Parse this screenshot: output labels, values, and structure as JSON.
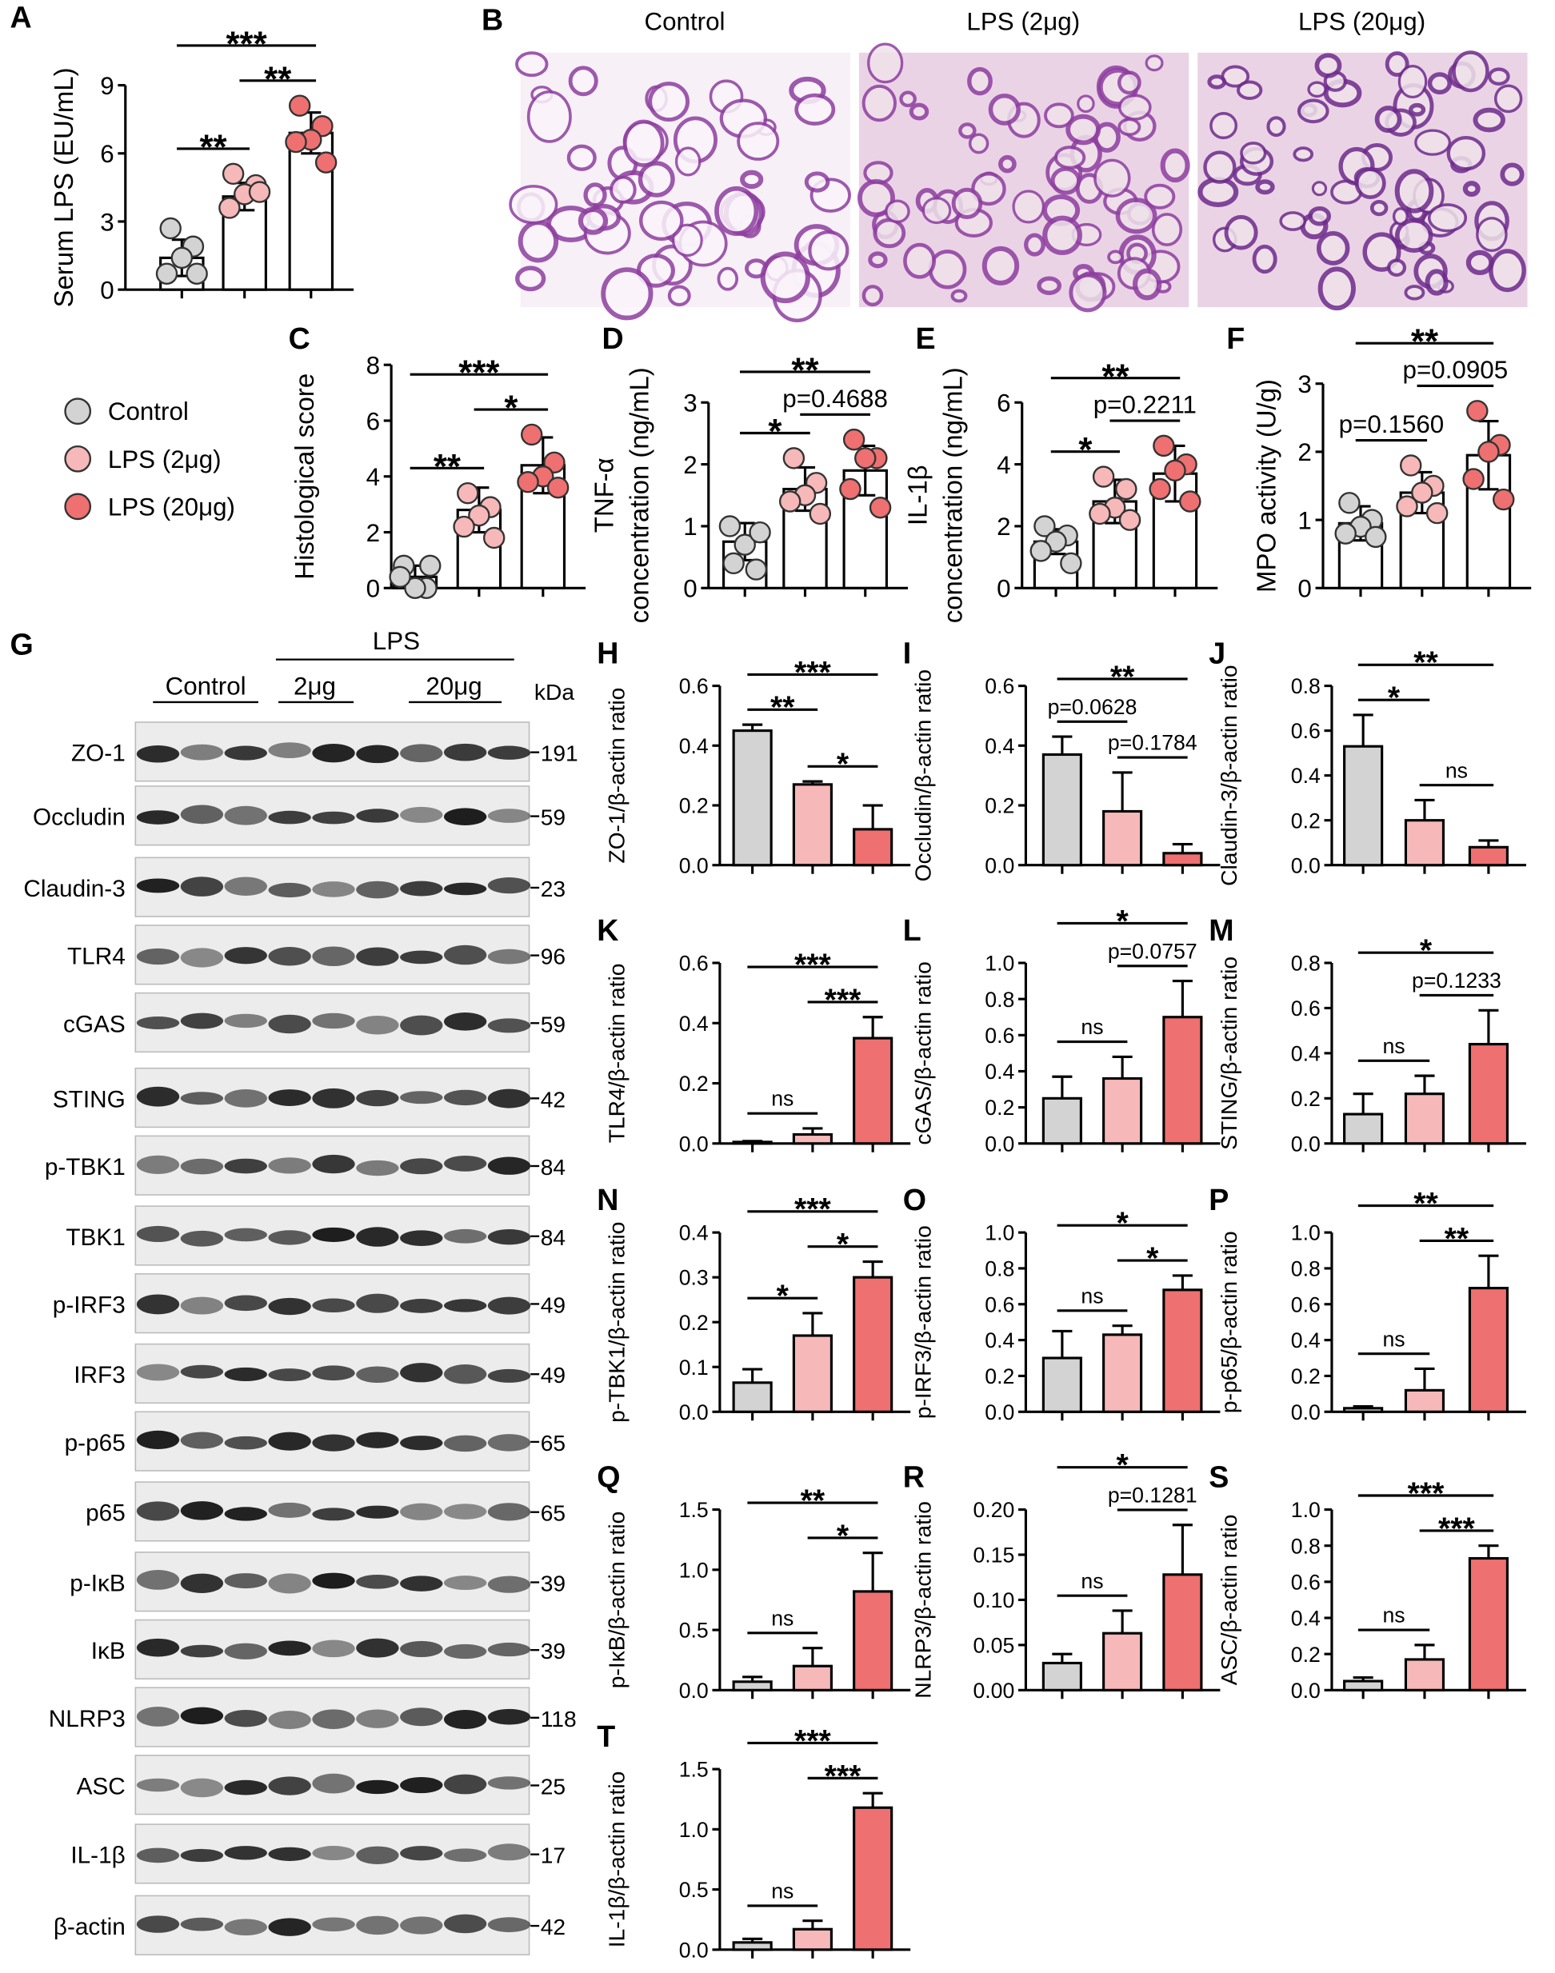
{
  "figure": {
    "groups": [
      {
        "name": "Control",
        "color": "#d3d3d3"
      },
      {
        "name": "LPS (2μg)",
        "color": "#f6b8b8"
      },
      {
        "name": "LPS (20μg)",
        "color": "#ee7070"
      }
    ],
    "histology": {
      "panel": "B",
      "titles": [
        "Control",
        "LPS (2μg)",
        "LPS (20μg)"
      ]
    },
    "blot": {
      "panel": "G",
      "control": "Control",
      "lps": "LPS",
      "doses": [
        "2μg",
        "20μg"
      ],
      "unit": "kDa",
      "rows": [
        {
          "name": "ZO-1",
          "kda": 191
        },
        {
          "name": "Occludin",
          "kda": 59
        },
        {
          "name": "Claudin-3",
          "kda": 23
        },
        {
          "name": "TLR4",
          "kda": 96
        },
        {
          "name": "cGAS",
          "kda": 59
        },
        {
          "name": "STING",
          "kda": 42
        },
        {
          "name": "p-TBK1",
          "kda": 84
        },
        {
          "name": "TBK1",
          "kda": 84
        },
        {
          "name": "p-IRF3",
          "kda": 49
        },
        {
          "name": "IRF3",
          "kda": 49
        },
        {
          "name": "p-p65",
          "kda": 65
        },
        {
          "name": "p65",
          "kda": 65
        },
        {
          "name": "p-IκB",
          "kda": 39
        },
        {
          "name": "IκB",
          "kda": 39
        },
        {
          "name": "NLRP3",
          "kda": 118
        },
        {
          "name": "ASC",
          "kda": 25
        },
        {
          "name": "IL-1β",
          "kda": 17
        },
        {
          "name": "β-actin",
          "kda": 42
        }
      ]
    }
  },
  "chart_data": [
    {
      "type": "bar",
      "style": "dots",
      "panel": "A",
      "ylabel": [
        "Serum LPS (EU/mL)"
      ],
      "categories": [
        null,
        null,
        null
      ],
      "ylim": [
        0,
        9
      ],
      "yticks": [
        0,
        3,
        6,
        9
      ],
      "values": [
        1.4,
        4.1,
        6.9
      ],
      "errors": [
        0.8,
        0.6,
        0.9
      ],
      "points": [
        [
          2.7,
          1.9,
          1.4,
          0.7,
          0.7
        ],
        [
          5.1,
          4.6,
          4.2,
          3.6,
          4.3
        ],
        [
          8.1,
          7.2,
          6.6,
          6.5,
          5.6
        ]
      ],
      "annotations": [
        {
          "groups": [
            0,
            1
          ],
          "label": "**"
        },
        {
          "groups": [
            1,
            2
          ],
          "label": "**"
        },
        {
          "groups": [
            0,
            2
          ],
          "label": "***"
        }
      ]
    },
    {
      "type": "bar",
      "style": "dots",
      "panel": "C",
      "ylabel": [
        "Histological score"
      ],
      "categories": [
        null,
        null,
        null
      ],
      "ylim": [
        0,
        8
      ],
      "yticks": [
        0,
        2,
        4,
        6,
        8
      ],
      "values": [
        0.4,
        2.8,
        4.4
      ],
      "errors": [
        0.4,
        0.8,
        1.0
      ],
      "points": [
        [
          0.8,
          0,
          0,
          0.4,
          0.8
        ],
        [
          3.4,
          2.9,
          2.6,
          2.2,
          1.8
        ],
        [
          5.5,
          4.5,
          4.0,
          3.8,
          3.6
        ]
      ],
      "annotations": [
        {
          "groups": [
            0,
            1
          ],
          "label": "**"
        },
        {
          "groups": [
            1,
            2
          ],
          "label": "*"
        },
        {
          "groups": [
            0,
            2
          ],
          "label": "***"
        }
      ]
    },
    {
      "type": "bar",
      "style": "dots",
      "panel": "D",
      "ylabel": [
        "TNF-α",
        "concentration (ng/mL)"
      ],
      "categories": [
        null,
        null,
        null
      ],
      "ylim": [
        0,
        3
      ],
      "yticks": [
        0,
        1,
        2,
        3
      ],
      "values": [
        0.75,
        1.6,
        1.9
      ],
      "errors": [
        0.3,
        0.35,
        0.4
      ],
      "points": [
        [
          0.4,
          0.3,
          0.7,
          1.0,
          0.9
        ],
        [
          2.1,
          1.7,
          1.5,
          1.4,
          1.2
        ],
        [
          2.4,
          2.1,
          2.1,
          1.6,
          1.3
        ]
      ],
      "annotations": [
        {
          "groups": [
            0,
            1
          ],
          "label": "*"
        },
        {
          "groups": [
            1,
            2
          ],
          "label": "p=0.4688"
        },
        {
          "groups": [
            0,
            2
          ],
          "label": "**"
        }
      ]
    },
    {
      "type": "bar",
      "style": "dots",
      "panel": "E",
      "ylabel": [
        "IL-1β",
        "concentration (ng/mL)"
      ],
      "categories": [
        null,
        null,
        null
      ],
      "ylim": [
        0,
        6
      ],
      "yticks": [
        0,
        2,
        4,
        6
      ],
      "values": [
        1.5,
        2.8,
        3.7
      ],
      "errors": [
        0.4,
        0.7,
        0.9
      ],
      "points": [
        [
          2.0,
          1.7,
          1.5,
          1.2,
          0.8
        ],
        [
          3.6,
          3.2,
          2.6,
          2.4,
          2.2
        ],
        [
          4.6,
          4.0,
          3.8,
          3.2,
          2.8
        ]
      ],
      "annotations": [
        {
          "groups": [
            0,
            1
          ],
          "label": "*"
        },
        {
          "groups": [
            1,
            2
          ],
          "label": "p=0.2211"
        },
        {
          "groups": [
            0,
            2
          ],
          "label": "**"
        }
      ]
    },
    {
      "type": "bar",
      "style": "dots",
      "panel": "F",
      "ylabel": [
        "MPO activity (U/g)"
      ],
      "categories": [
        null,
        null,
        null
      ],
      "ylim": [
        0,
        3
      ],
      "yticks": [
        0,
        1,
        2,
        3
      ],
      "values": [
        0.95,
        1.4,
        1.95
      ],
      "errors": [
        0.25,
        0.3,
        0.5
      ],
      "points": [
        [
          1.25,
          1.0,
          0.9,
          0.8,
          0.75
        ],
        [
          1.8,
          1.5,
          1.4,
          1.2,
          1.1
        ],
        [
          2.6,
          2.1,
          2.0,
          1.6,
          1.3
        ]
      ],
      "annotations": [
        {
          "groups": [
            0,
            1
          ],
          "label": "p=0.1560"
        },
        {
          "groups": [
            1,
            2
          ],
          "label": "p=0.0905"
        },
        {
          "groups": [
            0,
            2
          ],
          "label": "**"
        }
      ]
    },
    {
      "type": "bar",
      "style": "filled",
      "panel": "H",
      "ylabel": [
        "ZO-1/β-actin ratio"
      ],
      "categories": [
        null,
        null,
        null
      ],
      "ylim": [
        0,
        0.6
      ],
      "yticks": [
        {
          "value": 0,
          "label": "0.0"
        },
        0.2,
        0.4,
        0.6
      ],
      "values": [
        0.45,
        0.27,
        0.12
      ],
      "errors": [
        0.02,
        0.01,
        0.08
      ],
      "annotations": [
        {
          "groups": [
            0,
            1
          ],
          "label": "**"
        },
        {
          "groups": [
            1,
            2
          ],
          "label": "*"
        },
        {
          "groups": [
            0,
            2
          ],
          "label": "***"
        }
      ]
    },
    {
      "type": "bar",
      "style": "filled",
      "panel": "I",
      "ylabel": [
        "Occludin/β-actin ratio"
      ],
      "categories": [
        null,
        null,
        null
      ],
      "ylim": [
        0,
        0.6
      ],
      "yticks": [
        {
          "value": 0,
          "label": "0.0"
        },
        0.2,
        0.4,
        0.6
      ],
      "values": [
        0.37,
        0.18,
        0.04
      ],
      "errors": [
        0.06,
        0.13,
        0.03
      ],
      "annotations": [
        {
          "groups": [
            0,
            1
          ],
          "label": "p=0.0628"
        },
        {
          "groups": [
            1,
            2
          ],
          "label": "p=0.1784"
        },
        {
          "groups": [
            0,
            2
          ],
          "label": "**"
        }
      ]
    },
    {
      "type": "bar",
      "style": "filled",
      "panel": "J",
      "ylabel": [
        "Claudin-3/β-actin ratio"
      ],
      "categories": [
        null,
        null,
        null
      ],
      "ylim": [
        0,
        0.8
      ],
      "yticks": [
        {
          "value": 0,
          "label": "0.0"
        },
        0.2,
        0.4,
        0.6,
        0.8
      ],
      "values": [
        0.53,
        0.2,
        0.08
      ],
      "errors": [
        0.14,
        0.09,
        0.03
      ],
      "annotations": [
        {
          "groups": [
            0,
            1
          ],
          "label": "*"
        },
        {
          "groups": [
            1,
            2
          ],
          "label": "ns"
        },
        {
          "groups": [
            0,
            2
          ],
          "label": "**"
        }
      ]
    },
    {
      "type": "bar",
      "style": "filled",
      "panel": "K",
      "ylabel": [
        "TLR4/β-actin ratio"
      ],
      "categories": [
        null,
        null,
        null
      ],
      "ylim": [
        0,
        0.6
      ],
      "yticks": [
        {
          "value": 0,
          "label": "0.0"
        },
        0.2,
        0.4,
        0.6
      ],
      "values": [
        0.005,
        0.03,
        0.35
      ],
      "errors": [
        0.003,
        0.02,
        0.07
      ],
      "annotations": [
        {
          "groups": [
            0,
            1
          ],
          "label": "ns"
        },
        {
          "groups": [
            1,
            2
          ],
          "label": "***"
        },
        {
          "groups": [
            0,
            2
          ],
          "label": "***"
        }
      ]
    },
    {
      "type": "bar",
      "style": "filled",
      "panel": "L",
      "ylabel": [
        "cGAS/β-actin ratio"
      ],
      "categories": [
        null,
        null,
        null
      ],
      "ylim": [
        0,
        1
      ],
      "yticks": [
        {
          "value": 0,
          "label": "0.0"
        },
        0.2,
        0.4,
        0.6,
        0.8,
        {
          "value": 1,
          "label": "1.0"
        }
      ],
      "values": [
        0.25,
        0.36,
        0.7
      ],
      "errors": [
        0.12,
        0.12,
        0.2
      ],
      "annotations": [
        {
          "groups": [
            0,
            1
          ],
          "label": "ns"
        },
        {
          "groups": [
            1,
            2
          ],
          "label": "p=0.0757"
        },
        {
          "groups": [
            0,
            2
          ],
          "label": "*"
        }
      ]
    },
    {
      "type": "bar",
      "style": "filled",
      "panel": "M",
      "ylabel": [
        "STING/β-actin ratio"
      ],
      "categories": [
        null,
        null,
        null
      ],
      "ylim": [
        0,
        0.8
      ],
      "yticks": [
        {
          "value": 0,
          "label": "0.0"
        },
        0.2,
        0.4,
        0.6,
        0.8
      ],
      "values": [
        0.13,
        0.22,
        0.44
      ],
      "errors": [
        0.09,
        0.08,
        0.15
      ],
      "annotations": [
        {
          "groups": [
            0,
            1
          ],
          "label": "ns"
        },
        {
          "groups": [
            1,
            2
          ],
          "label": "p=0.1233"
        },
        {
          "groups": [
            0,
            2
          ],
          "label": "*"
        }
      ]
    },
    {
      "type": "bar",
      "style": "filled",
      "panel": "N",
      "ylabel": [
        "p-TBK1/β-actin ratio"
      ],
      "categories": [
        null,
        null,
        null
      ],
      "ylim": [
        0,
        0.4
      ],
      "yticks": [
        {
          "value": 0,
          "label": "0.0"
        },
        0.1,
        0.2,
        0.3,
        0.4
      ],
      "values": [
        0.065,
        0.17,
        0.3
      ],
      "errors": [
        0.03,
        0.05,
        0.035
      ],
      "annotations": [
        {
          "groups": [
            0,
            1
          ],
          "label": "*"
        },
        {
          "groups": [
            1,
            2
          ],
          "label": "*"
        },
        {
          "groups": [
            0,
            2
          ],
          "label": "***"
        }
      ]
    },
    {
      "type": "bar",
      "style": "filled",
      "panel": "O",
      "ylabel": [
        "p-IRF3/β-actin ratio"
      ],
      "categories": [
        null,
        null,
        null
      ],
      "ylim": [
        0,
        1
      ],
      "yticks": [
        {
          "value": 0,
          "label": "0.0"
        },
        0.2,
        0.4,
        0.6,
        0.8,
        {
          "value": 1,
          "label": "1.0"
        }
      ],
      "values": [
        0.3,
        0.43,
        0.68
      ],
      "errors": [
        0.15,
        0.05,
        0.08
      ],
      "annotations": [
        {
          "groups": [
            0,
            1
          ],
          "label": "ns"
        },
        {
          "groups": [
            1,
            2
          ],
          "label": "*"
        },
        {
          "groups": [
            0,
            2
          ],
          "label": "*"
        }
      ]
    },
    {
      "type": "bar",
      "style": "filled",
      "panel": "P",
      "ylabel": [
        "p-p65/β-actin ratio"
      ],
      "categories": [
        null,
        null,
        null
      ],
      "ylim": [
        0,
        1
      ],
      "yticks": [
        {
          "value": 0,
          "label": "0.0"
        },
        0.2,
        0.4,
        0.6,
        0.8,
        {
          "value": 1,
          "label": "1.0"
        }
      ],
      "values": [
        0.02,
        0.12,
        0.69
      ],
      "errors": [
        0.01,
        0.12,
        0.18
      ],
      "annotations": [
        {
          "groups": [
            0,
            1
          ],
          "label": "ns"
        },
        {
          "groups": [
            1,
            2
          ],
          "label": "**"
        },
        {
          "groups": [
            0,
            2
          ],
          "label": "**"
        }
      ]
    },
    {
      "type": "bar",
      "style": "filled",
      "panel": "Q",
      "ylabel": [
        "p-IκB/β-actin ratio"
      ],
      "categories": [
        null,
        null,
        null
      ],
      "ylim": [
        0,
        1.5
      ],
      "yticks": [
        {
          "value": 0,
          "label": "0.0"
        },
        0.5,
        {
          "value": 1,
          "label": "1.0"
        },
        1.5
      ],
      "values": [
        0.07,
        0.2,
        0.82
      ],
      "errors": [
        0.04,
        0.15,
        0.32
      ],
      "annotations": [
        {
          "groups": [
            0,
            1
          ],
          "label": "ns"
        },
        {
          "groups": [
            1,
            2
          ],
          "label": "*"
        },
        {
          "groups": [
            0,
            2
          ],
          "label": "**"
        }
      ]
    },
    {
      "type": "bar",
      "style": "filled",
      "panel": "R",
      "ylabel": [
        "NLRP3/β-actin ratio"
      ],
      "categories": [
        null,
        null,
        null
      ],
      "ylim": [
        0,
        0.2
      ],
      "yticks": [
        {
          "value": 0,
          "label": "0.00"
        },
        0.05,
        {
          "value": 0.1,
          "label": "0.10"
        },
        0.15,
        {
          "value": 0.2,
          "label": "0.20"
        }
      ],
      "values": [
        0.03,
        0.063,
        0.128
      ],
      "errors": [
        0.01,
        0.025,
        0.055
      ],
      "annotations": [
        {
          "groups": [
            0,
            1
          ],
          "label": "ns"
        },
        {
          "groups": [
            1,
            2
          ],
          "label": "p=0.1281"
        },
        {
          "groups": [
            0,
            2
          ],
          "label": "*"
        }
      ]
    },
    {
      "type": "bar",
      "style": "filled",
      "panel": "S",
      "ylabel": [
        "ASC/β-actin ratio"
      ],
      "categories": [
        null,
        null,
        null
      ],
      "ylim": [
        0,
        1
      ],
      "yticks": [
        {
          "value": 0,
          "label": "0.0"
        },
        0.2,
        0.4,
        0.6,
        0.8,
        {
          "value": 1,
          "label": "1.0"
        }
      ],
      "values": [
        0.05,
        0.17,
        0.73
      ],
      "errors": [
        0.02,
        0.08,
        0.07
      ],
      "annotations": [
        {
          "groups": [
            0,
            1
          ],
          "label": "ns"
        },
        {
          "groups": [
            1,
            2
          ],
          "label": "***"
        },
        {
          "groups": [
            0,
            2
          ],
          "label": "***"
        }
      ]
    },
    {
      "type": "bar",
      "style": "filled",
      "panel": "T",
      "ylabel": [
        "IL-1β/β-actin ratio"
      ],
      "categories": [
        null,
        null,
        null
      ],
      "ylim": [
        0,
        1.5
      ],
      "yticks": [
        {
          "value": 0,
          "label": "0.0"
        },
        0.5,
        {
          "value": 1,
          "label": "1.0"
        },
        1.5
      ],
      "values": [
        0.06,
        0.17,
        1.18
      ],
      "errors": [
        0.03,
        0.07,
        0.12
      ],
      "annotations": [
        {
          "groups": [
            0,
            1
          ],
          "label": "ns"
        },
        {
          "groups": [
            1,
            2
          ],
          "label": "***"
        },
        {
          "groups": [
            0,
            2
          ],
          "label": "***"
        }
      ]
    }
  ]
}
